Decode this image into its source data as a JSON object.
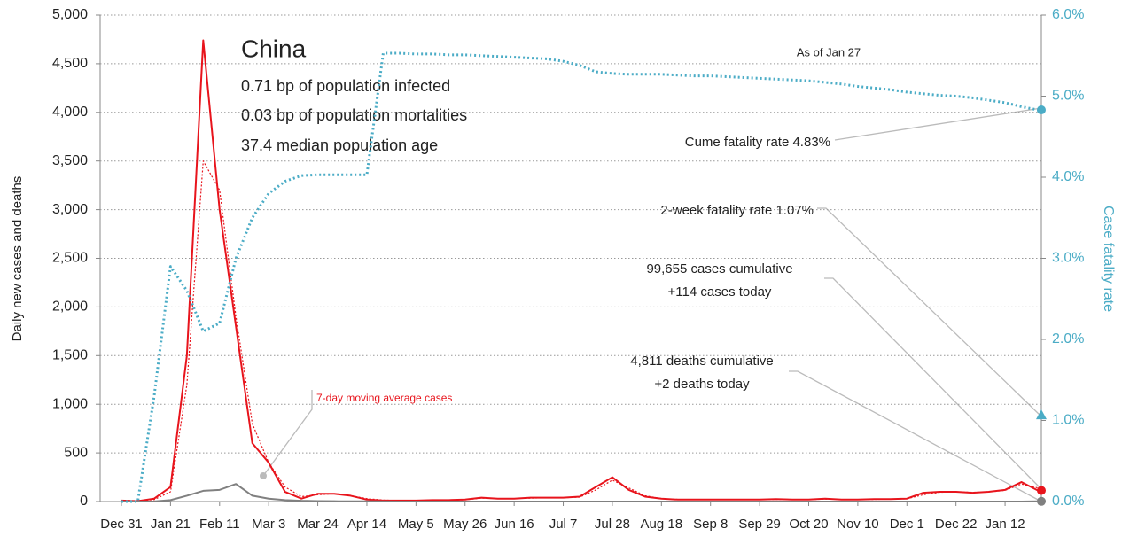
{
  "chart_data": {
    "type": "line",
    "title": "China",
    "subtitle_lines": [
      "0.71 bp of population infected",
      "0.03 bp of population mortalities",
      "37.4 median population age"
    ],
    "ylabel": "Daily new cases and deaths",
    "y2label": "Case fatality rate",
    "categories": [
      "Dec 31",
      null,
      null,
      "Jan 21",
      null,
      null,
      "Feb 11",
      null,
      null,
      "Mar 3",
      null,
      null,
      "Mar 24",
      null,
      null,
      "Apr 14",
      null,
      null,
      "May 5",
      null,
      null,
      "May 26",
      null,
      null,
      "Jun 16",
      null,
      null,
      "Jul 7",
      null,
      null,
      "Jul 28",
      null,
      null,
      "Aug 18",
      null,
      null,
      "Sep 8",
      null,
      null,
      "Sep 29",
      null,
      null,
      "Oct 20",
      null,
      null,
      "Nov 10",
      null,
      null,
      "Dec 1",
      null,
      null,
      "Dec 22",
      null,
      null,
      "Jan 12",
      null,
      null
    ],
    "series": [
      {
        "color": "#e8141c",
        "style": "solid",
        "values": [
          10,
          5,
          30,
          150,
          1500,
          4740,
          3000,
          1800,
          600,
          400,
          100,
          30,
          80,
          80,
          60,
          20,
          10,
          10,
          10,
          15,
          15,
          20,
          40,
          30,
          30,
          40,
          40,
          40,
          50,
          150,
          250,
          120,
          50,
          30,
          20,
          20,
          20,
          20,
          20,
          20,
          25,
          20,
          20,
          30,
          20,
          20,
          25,
          25,
          30,
          90,
          100,
          100,
          90,
          100,
          120,
          200,
          114
        ]
      },
      {
        "name": "7-day moving average cases",
        "color": "#e8141c",
        "style": "dotted",
        "values": [
          5,
          8,
          20,
          100,
          1200,
          3500,
          3200,
          1900,
          800,
          400,
          150,
          50,
          70,
          80,
          60,
          30,
          15,
          10,
          10,
          12,
          15,
          18,
          35,
          30,
          30,
          35,
          40,
          40,
          45,
          120,
          220,
          140,
          60,
          30,
          22,
          20,
          20,
          20,
          20,
          20,
          22,
          20,
          20,
          25,
          22,
          20,
          22,
          25,
          28,
          70,
          95,
          100,
          95,
          98,
          115,
          180,
          140
        ]
      },
      {
        "color": "#808080",
        "style": "solid",
        "values": [
          0,
          0,
          1,
          15,
          60,
          110,
          120,
          180,
          60,
          30,
          15,
          8,
          5,
          3,
          2,
          2,
          1,
          0,
          0,
          0,
          0,
          0,
          0,
          0,
          0,
          0,
          0,
          0,
          0,
          0,
          0,
          0,
          0,
          0,
          0,
          0,
          0,
          0,
          0,
          0,
          0,
          0,
          0,
          0,
          0,
          0,
          0,
          0,
          0,
          0,
          0,
          0,
          0,
          0,
          0,
          0,
          2
        ]
      },
      {
        "color": "#4bacc6",
        "style": "dotted",
        "axis": "y2",
        "values": [
          0,
          0,
          1.3,
          2.9,
          2.6,
          2.1,
          2.2,
          3.0,
          3.5,
          3.8,
          3.95,
          4.02,
          4.03,
          4.03,
          4.03,
          4.03,
          5.53,
          5.53,
          5.52,
          5.52,
          5.51,
          5.51,
          5.5,
          5.49,
          5.48,
          5.47,
          5.46,
          5.43,
          5.38,
          5.3,
          5.28,
          5.27,
          5.27,
          5.27,
          5.26,
          5.25,
          5.25,
          5.24,
          5.23,
          5.22,
          5.21,
          5.2,
          5.19,
          5.17,
          5.15,
          5.12,
          5.1,
          5.08,
          5.05,
          5.03,
          5.01,
          5.0,
          4.98,
          4.95,
          4.92,
          4.87,
          4.83
        ]
      }
    ],
    "two_week_fatality_rate": 1.07,
    "annotations": [
      "As of Jan 27",
      "Cume fatality rate 4.83%",
      "2-week fatality rate 1.07%",
      "99,655 cases cumulative",
      "+114 cases today",
      "4,811 deaths cumulative",
      "+2 deaths today"
    ],
    "ylim": [
      0,
      5000
    ],
    "yticks": [
      0,
      500,
      {
        "value": 1000,
        "label": "1,000"
      },
      {
        "value": 1500,
        "label": "1,500"
      },
      {
        "value": 2000,
        "label": "2,000"
      },
      {
        "value": 2500,
        "label": "2,500"
      },
      {
        "value": 3000,
        "label": "3,000"
      },
      {
        "value": 3500,
        "label": "3,500"
      },
      {
        "value": 4000,
        "label": "4,000"
      },
      {
        "value": 4500,
        "label": "4,500"
      },
      {
        "value": 5000,
        "label": "5,000"
      }
    ],
    "y2lim": [
      0,
      6
    ],
    "y2ticks": [
      {
        "value": 0,
        "label": "0.0%"
      },
      {
        "value": 1,
        "label": "1.0%"
      },
      {
        "value": 2,
        "label": "2.0%"
      },
      {
        "value": 3,
        "label": "3.0%"
      },
      {
        "value": 4,
        "label": "4.0%"
      },
      {
        "value": 5,
        "label": "5.0%"
      },
      {
        "value": 6,
        "label": "6.0%"
      }
    ],
    "grid": true
  }
}
